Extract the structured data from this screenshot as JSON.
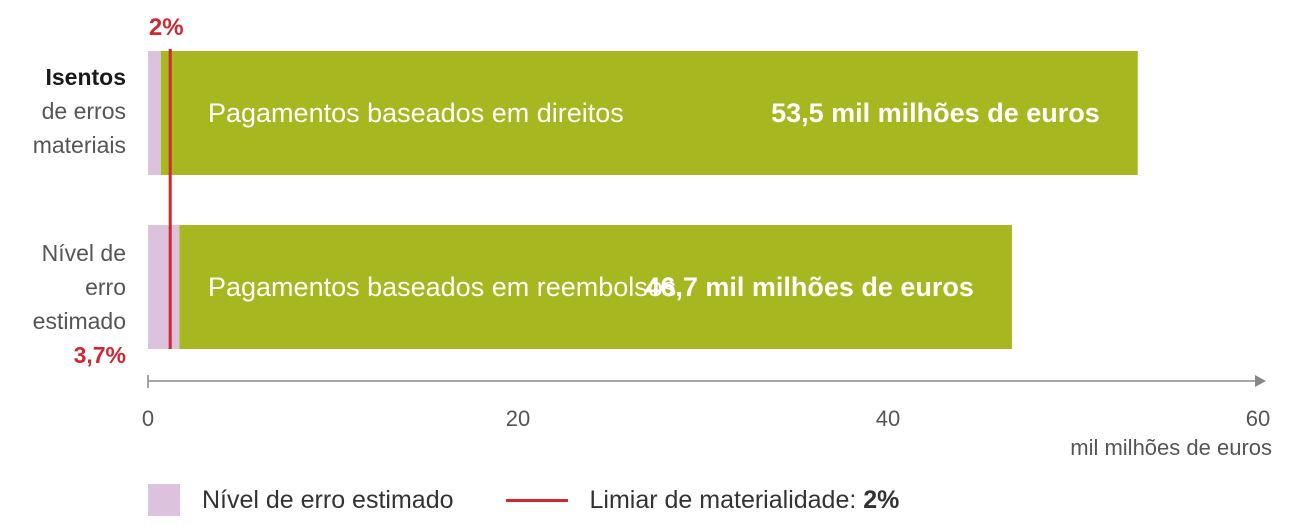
{
  "chart_data": {
    "type": "bar",
    "orientation": "horizontal",
    "stacked": true,
    "categories": [
      "Pagamentos baseados em direitos",
      "Pagamentos baseados em reembolsos"
    ],
    "totals": [
      53.5,
      46.7
    ],
    "value_labels": [
      "53,5 mil milhões de euros",
      "46,7 mil milhões de euros"
    ],
    "series": [
      {
        "name": "Nível de erro estimado",
        "values": [
          0.7,
          1.7
        ],
        "color": "#dcc2dd"
      },
      {
        "values": [
          52.8,
          45.0
        ],
        "color": "#a6b71f"
      }
    ],
    "xlim": [
      0,
      60
    ],
    "xticks": [
      "0",
      "20",
      "40",
      "60"
    ],
    "xlabel": "mil milhões de euros",
    "threshold": {
      "value": 1.2,
      "label": "2%",
      "color": "#d22630"
    },
    "grid": false,
    "legend_position": "bottom-left"
  },
  "row_labels": {
    "top": {
      "line1": "Isentos",
      "line2": "de erros",
      "line3": "materiais"
    },
    "bottom": {
      "line1": "Nível de erro",
      "line2": "estimado",
      "line3": "3,7%"
    }
  },
  "legend": {
    "error_label": "Nível de erro estimado",
    "threshold_label": "Limiar de materialidade:",
    "threshold_value": "2%"
  },
  "colors": {
    "accent_red": "#d22630",
    "bar_green": "#a6b71f",
    "error_pink": "#dcc2dd",
    "axis": "#888888"
  }
}
